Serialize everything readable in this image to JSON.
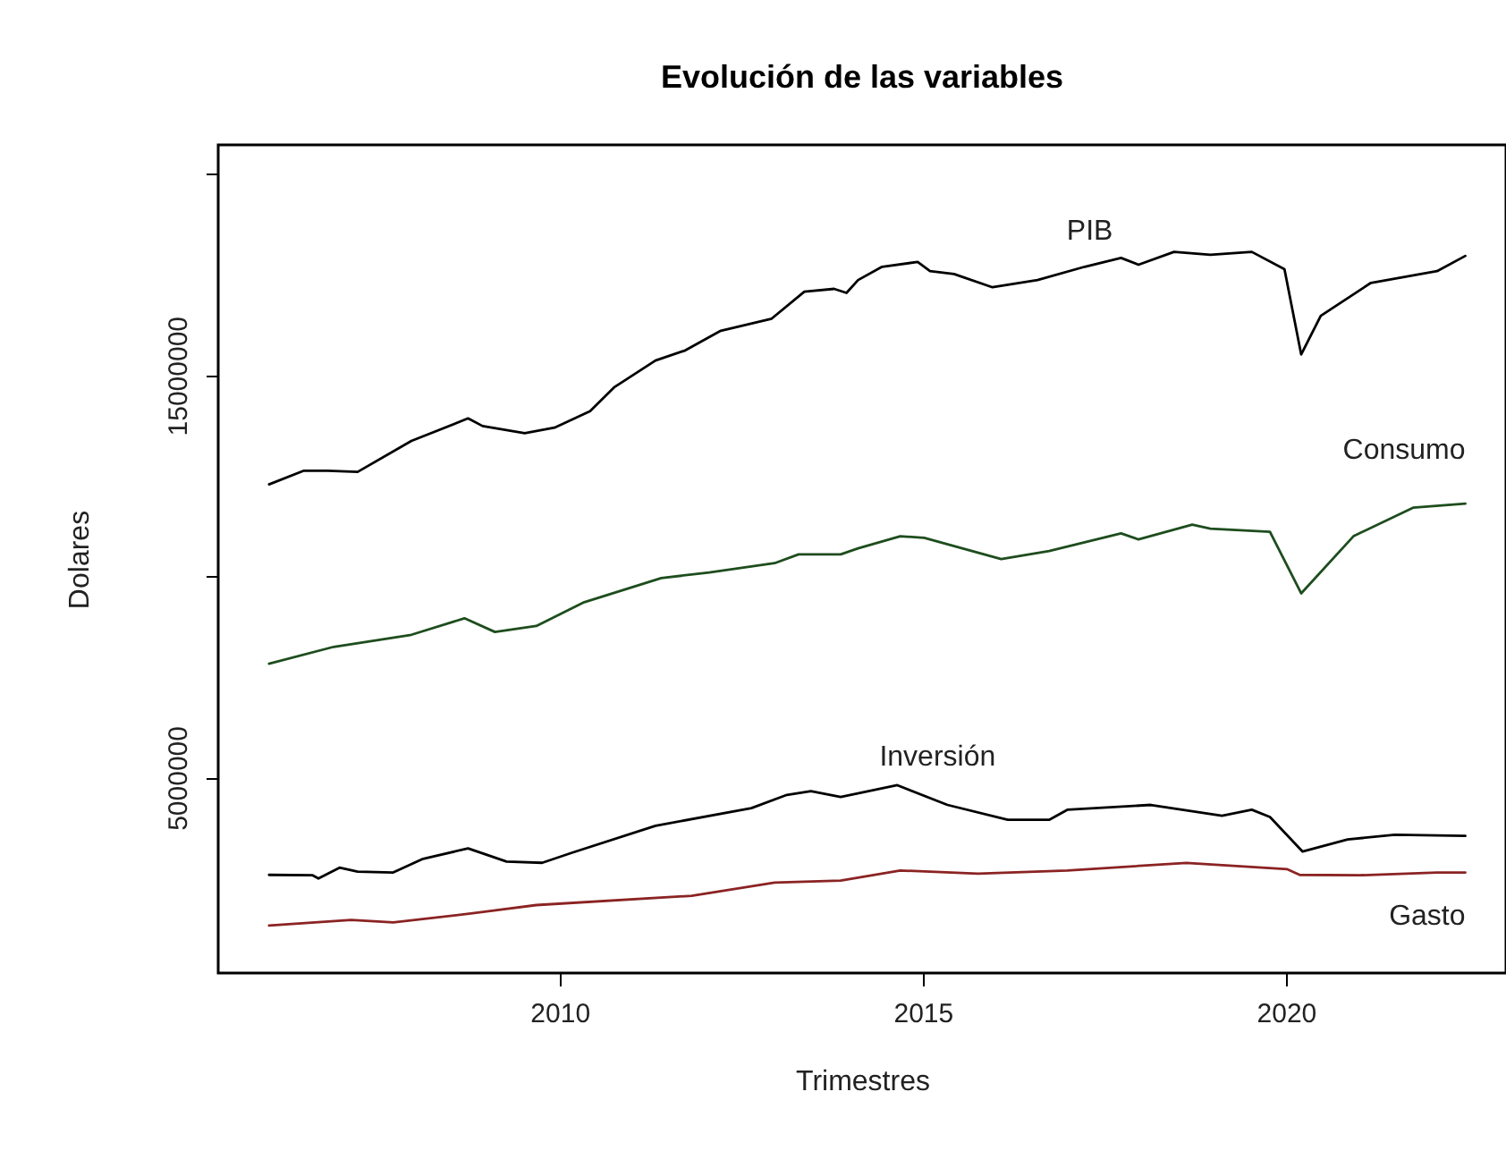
{
  "chart_data": {
    "type": "line",
    "title": "Evolución de las variables",
    "xlabel": "Trimestres",
    "ylabel": "Dolares",
    "xlim": [
      2005.3,
      2023.03
    ],
    "xticks": [
      2010,
      2015,
      2020
    ],
    "ylim": [
      140000,
      20730000
    ],
    "yticks": [
      5000000,
      {
        "value": 10000000,
        "label": null
      },
      15000000,
      {
        "value": 20000000,
        "label": null
      }
    ],
    "grid": false,
    "legend": false,
    "line_style": "solid",
    "marker": "none",
    "series": [
      {
        "name": "PIB",
        "color": "#000000",
        "x": [
          2006.0,
          2006.48,
          2006.81,
          2007.22,
          2007.96,
          2008.74,
          2008.94,
          2009.52,
          2009.93,
          2010.42,
          2010.75,
          2011.32,
          2011.73,
          2012.22,
          2012.92,
          2013.37,
          2013.78,
          2013.95,
          2014.11,
          2014.44,
          2014.93,
          2015.1,
          2015.43,
          2015.96,
          2016.58,
          2017.23,
          2017.73,
          2017.97,
          2018.46,
          2018.96,
          2019.53,
          2019.98,
          2020.21,
          2020.48,
          2021.17,
          2022.08,
          2022.47
        ],
        "values": [
          12290000,
          12630000,
          12630000,
          12600000,
          13370000,
          13930000,
          13740000,
          13560000,
          13700000,
          14110000,
          14700000,
          15370000,
          15620000,
          16110000,
          16410000,
          17080000,
          17150000,
          17050000,
          17370000,
          17700000,
          17820000,
          17590000,
          17520000,
          17190000,
          17370000,
          17700000,
          17920000,
          17750000,
          18070000,
          18000000,
          18070000,
          17640000,
          15520000,
          16480000,
          17300000,
          17590000,
          17970000
        ]
      },
      {
        "name": "Consumo",
        "color": "#1e4d1e",
        "x": [
          2006.0,
          2006.89,
          2007.96,
          2008.69,
          2009.11,
          2009.68,
          2010.34,
          2011.4,
          2012.06,
          2012.96,
          2013.29,
          2013.87,
          2014.11,
          2014.69,
          2015.02,
          2016.08,
          2016.74,
          2017.73,
          2017.97,
          2018.71,
          2018.96,
          2019.78,
          2020.21,
          2020.93,
          2021.75,
          2022.47
        ],
        "values": [
          7830000,
          8250000,
          8550000,
          8960000,
          8620000,
          8770000,
          9360000,
          9960000,
          10100000,
          10330000,
          10550000,
          10550000,
          10700000,
          11000000,
          10960000,
          10430000,
          10630000,
          11070000,
          10920000,
          11290000,
          11190000,
          11110000,
          9580000,
          11000000,
          11710000,
          11810000
        ]
      },
      {
        "name": "Inversión",
        "color": "#000000",
        "x": [
          2006.0,
          2006.6,
          2006.68,
          2006.97,
          2007.22,
          2007.71,
          2008.12,
          2008.74,
          2009.27,
          2009.76,
          2010.17,
          2011.32,
          2012.64,
          2013.13,
          2013.46,
          2013.87,
          2014.65,
          2015.34,
          2016.17,
          2016.74,
          2016.99,
          2018.14,
          2019.12,
          2019.53,
          2019.78,
          2020.23,
          2020.85,
          2021.5,
          2022.47
        ],
        "values": [
          2580000,
          2570000,
          2490000,
          2760000,
          2660000,
          2640000,
          2980000,
          3240000,
          2910000,
          2880000,
          3130000,
          3800000,
          4240000,
          4570000,
          4660000,
          4520000,
          4810000,
          4320000,
          3950000,
          3950000,
          4200000,
          4320000,
          4050000,
          4200000,
          4020000,
          3160000,
          3460000,
          3580000,
          3550000
        ]
      },
      {
        "name": "Gasto",
        "color": "#8b2323",
        "x": [
          2006.0,
          2007.13,
          2007.71,
          2008.78,
          2009.68,
          2011.82,
          2012.96,
          2013.87,
          2014.69,
          2015.76,
          2016.99,
          2018.63,
          2020.02,
          2020.19,
          2021.01,
          2022.08,
          2022.47
        ],
        "values": [
          1320000,
          1460000,
          1400000,
          1620000,
          1830000,
          2060000,
          2390000,
          2440000,
          2690000,
          2610000,
          2690000,
          2880000,
          2720000,
          2580000,
          2570000,
          2640000,
          2640000
        ]
      }
    ]
  }
}
